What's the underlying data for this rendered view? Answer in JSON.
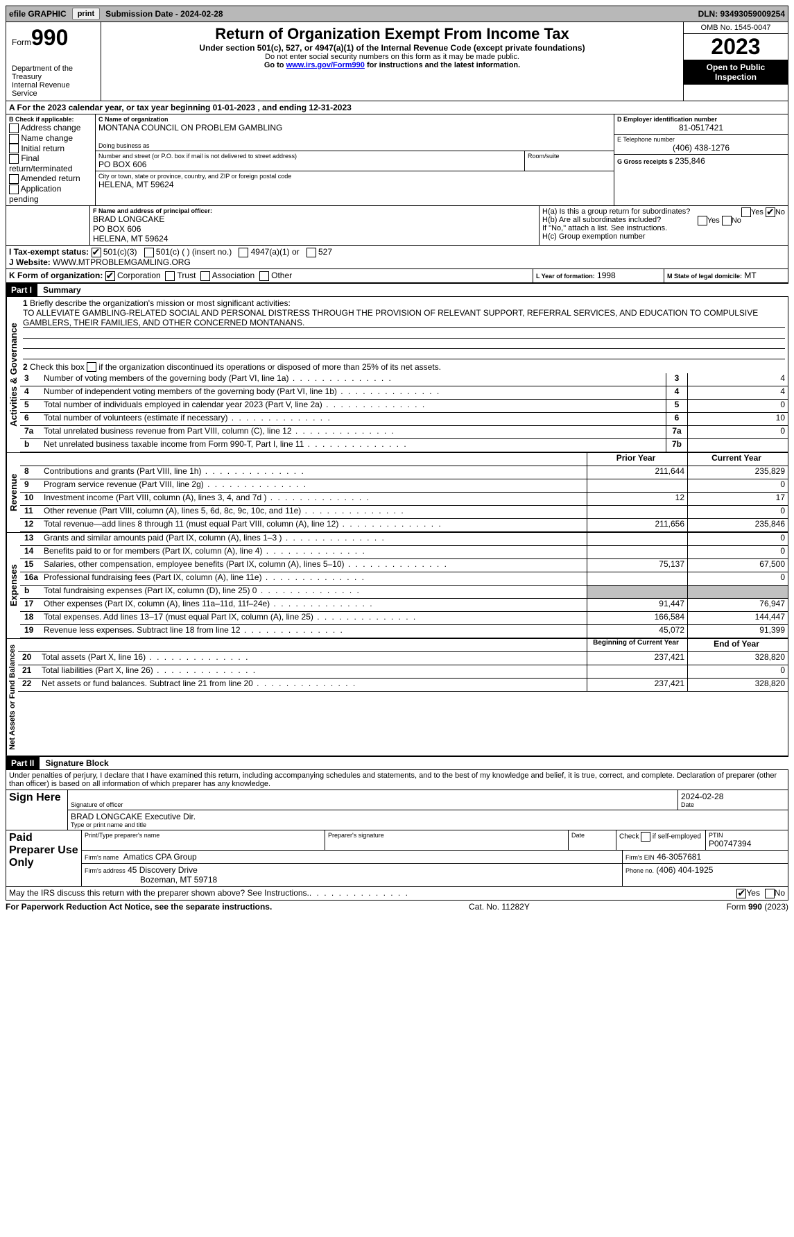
{
  "colors": {
    "top_bar_bg": "#b8b8b8",
    "black": "#000000",
    "white": "#ffffff",
    "grey_cell": "#c0c0c0",
    "link": "#0000ee"
  },
  "top_bar": {
    "efile_label": "efile GRAPHIC",
    "print_btn": "print",
    "submission_label": "Submission Date - 2024-02-28",
    "dln_label": "DLN: 93493059009254"
  },
  "header": {
    "form_word": "Form",
    "form_num": "990",
    "dept1": "Department of the Treasury",
    "dept2": "Internal Revenue Service",
    "title": "Return of Organization Exempt From Income Tax",
    "subtitle": "Under section 501(c), 527, or 4947(a)(1) of the Internal Revenue Code (except private foundations)",
    "note1": "Do not enter social security numbers on this form as it may be made public.",
    "note2_pre": "Go to ",
    "note2_link": "www.irs.gov/Form990",
    "note2_post": " for instructions and the latest information.",
    "omb": "OMB No. 1545-0047",
    "year": "2023",
    "inspection": "Open to Public Inspection"
  },
  "period": {
    "text_a": "A For the 2023 calendar year, or tax year beginning ",
    "begin": "01-01-2023",
    "text_mid": " , and ending ",
    "end": "12-31-2023"
  },
  "box_b": {
    "label": "B Check if applicable:",
    "items": [
      "Address change",
      "Name change",
      "Initial return",
      "Final return/terminated",
      "Amended return",
      "Application pending"
    ]
  },
  "box_c": {
    "name_label": "C Name of organization",
    "name": "MONTANA COUNCIL ON PROBLEM GAMBLING",
    "dba_label": "Doing business as",
    "street_label": "Number and street (or P.O. box if mail is not delivered to street address)",
    "street": "PO BOX 606",
    "room_label": "Room/suite",
    "city_label": "City or town, state or province, country, and ZIP or foreign postal code",
    "city": "HELENA, MT  59624"
  },
  "box_d": {
    "label": "D Employer identification number",
    "value": "81-0517421"
  },
  "box_e": {
    "label": "E Telephone number",
    "value": "(406) 438-1276"
  },
  "box_g": {
    "label": "G Gross receipts $",
    "value": "235,846"
  },
  "box_f": {
    "label": "F  Name and address of principal officer:",
    "l1": "BRAD LONGCAKE",
    "l2": "PO BOX 606",
    "l3": "HELENA, MT  59624"
  },
  "box_h": {
    "ha": "H(a)  Is this a group return for subordinates?",
    "hb": "H(b)  Are all subordinates included?",
    "hb_note": "If \"No,\" attach a list. See instructions.",
    "hc": "H(c)  Group exemption number",
    "yes": "Yes",
    "no": "No"
  },
  "box_i": {
    "label": "I  Tax-exempt status:",
    "o1": "501(c)(3)",
    "o2": "501(c) (  ) (insert no.)",
    "o3": "4947(a)(1) or",
    "o4": "527"
  },
  "box_j": {
    "label": "J  Website:",
    "value": "WWW.MTPROBLEMGAMLING.ORG"
  },
  "box_k": {
    "label": "K Form of organization:",
    "o1": "Corporation",
    "o2": "Trust",
    "o3": "Association",
    "o4": "Other"
  },
  "box_l": {
    "label": "L Year of formation:",
    "value": "1998"
  },
  "box_m": {
    "label": "M State of legal domicile:",
    "value": "MT"
  },
  "part1": {
    "header": "Part I",
    "title": "Summary",
    "q1_label": "Briefly describe the organization's mission or most significant activities:",
    "q1_text": "TO ALLEVIATE GAMBLING-RELATED SOCIAL AND PERSONAL DISTRESS THROUGH THE PROVISION OF RELEVANT SUPPORT, REFERRAL SERVICES, AND EDUCATION TO COMPULSIVE GAMBLERS, THEIR FAMILIES, AND OTHER CONCERNED MONTANANS.",
    "q2": "Check this box      if the organization discontinued its operations or disposed of more than 25% of its net assets.",
    "gov_label": "Activities & Governance",
    "rev_label": "Revenue",
    "exp_label": "Expenses",
    "net_label": "Net Assets or Fund Balances",
    "prior_year": "Prior Year",
    "current_year": "Current Year",
    "begin_year": "Beginning of Current Year",
    "end_year": "End of Year",
    "lines_gov": [
      {
        "n": "3",
        "t": "Number of voting members of the governing body (Part VI, line 1a)",
        "box": "3",
        "v": "4"
      },
      {
        "n": "4",
        "t": "Number of independent voting members of the governing body (Part VI, line 1b)",
        "box": "4",
        "v": "4"
      },
      {
        "n": "5",
        "t": "Total number of individuals employed in calendar year 2023 (Part V, line 2a)",
        "box": "5",
        "v": "0"
      },
      {
        "n": "6",
        "t": "Total number of volunteers (estimate if necessary)",
        "box": "6",
        "v": "10"
      },
      {
        "n": "7a",
        "t": "Total unrelated business revenue from Part VIII, column (C), line 12",
        "box": "7a",
        "v": "0"
      },
      {
        "n": "b",
        "t": "Net unrelated business taxable income from Form 990-T, Part I, line 11",
        "box": "7b",
        "v": ""
      }
    ],
    "lines_rev": [
      {
        "n": "8",
        "t": "Contributions and grants (Part VIII, line 1h)",
        "py": "211,644",
        "cy": "235,829"
      },
      {
        "n": "9",
        "t": "Program service revenue (Part VIII, line 2g)",
        "py": "",
        "cy": "0"
      },
      {
        "n": "10",
        "t": "Investment income (Part VIII, column (A), lines 3, 4, and 7d )",
        "py": "12",
        "cy": "17"
      },
      {
        "n": "11",
        "t": "Other revenue (Part VIII, column (A), lines 5, 6d, 8c, 9c, 10c, and 11e)",
        "py": "",
        "cy": "0"
      },
      {
        "n": "12",
        "t": "Total revenue—add lines 8 through 11 (must equal Part VIII, column (A), line 12)",
        "py": "211,656",
        "cy": "235,846"
      }
    ],
    "lines_exp": [
      {
        "n": "13",
        "t": "Grants and similar amounts paid (Part IX, column (A), lines 1–3 )",
        "py": "",
        "cy": "0"
      },
      {
        "n": "14",
        "t": "Benefits paid to or for members (Part IX, column (A), line 4)",
        "py": "",
        "cy": "0"
      },
      {
        "n": "15",
        "t": "Salaries, other compensation, employee benefits (Part IX, column (A), lines 5–10)",
        "py": "75,137",
        "cy": "67,500"
      },
      {
        "n": "16a",
        "t": "Professional fundraising fees (Part IX, column (A), line 11e)",
        "py": "",
        "cy": "0"
      },
      {
        "n": "b",
        "t": "Total fundraising expenses (Part IX, column (D), line 25) 0",
        "py": "grey",
        "cy": "grey"
      },
      {
        "n": "17",
        "t": "Other expenses (Part IX, column (A), lines 11a–11d, 11f–24e)",
        "py": "91,447",
        "cy": "76,947"
      },
      {
        "n": "18",
        "t": "Total expenses. Add lines 13–17 (must equal Part IX, column (A), line 25)",
        "py": "166,584",
        "cy": "144,447"
      },
      {
        "n": "19",
        "t": "Revenue less expenses. Subtract line 18 from line 12",
        "py": "45,072",
        "cy": "91,399"
      }
    ],
    "lines_net": [
      {
        "n": "20",
        "t": "Total assets (Part X, line 16)",
        "py": "237,421",
        "cy": "328,820"
      },
      {
        "n": "21",
        "t": "Total liabilities (Part X, line 26)",
        "py": "",
        "cy": "0"
      },
      {
        "n": "22",
        "t": "Net assets or fund balances. Subtract line 21 from line 20",
        "py": "237,421",
        "cy": "328,820"
      }
    ]
  },
  "part2": {
    "header": "Part II",
    "title": "Signature Block",
    "declaration": "Under penalties of perjury, I declare that I have examined this return, including accompanying schedules and statements, and to the best of my knowledge and belief, it is true, correct, and complete. Declaration of preparer (other than officer) is based on all information of which preparer has any knowledge.",
    "sign_here": "Sign Here",
    "sig_date": "2024-02-28",
    "sig_label": "Signature of officer",
    "officer_name": "BRAD LONGCAKE  Executive Dir.",
    "type_label": "Type or print name and title",
    "date_label": "Date",
    "paid_label": "Paid Preparer Use Only",
    "print_name_label": "Print/Type preparer's name",
    "prep_sig_label": "Preparer's signature",
    "check_self": "Check       if self-employed",
    "ptin_label": "PTIN",
    "ptin": "P00747394",
    "firm_name_label": "Firm's name",
    "firm_name": "Amatics CPA Group",
    "firm_ein_label": "Firm's EIN",
    "firm_ein": "46-3057681",
    "firm_addr_label": "Firm's address",
    "firm_addr1": "45 Discovery Drive",
    "firm_addr2": "Bozeman, MT  59718",
    "phone_label": "Phone no.",
    "phone": "(406) 404-1925",
    "may_irs": "May the IRS discuss this return with the preparer shown above? See Instructions.",
    "yes": "Yes",
    "no": "No"
  },
  "footer": {
    "left": "For Paperwork Reduction Act Notice, see the separate instructions.",
    "mid": "Cat. No. 11282Y",
    "right": "Form 990 (2023)"
  }
}
